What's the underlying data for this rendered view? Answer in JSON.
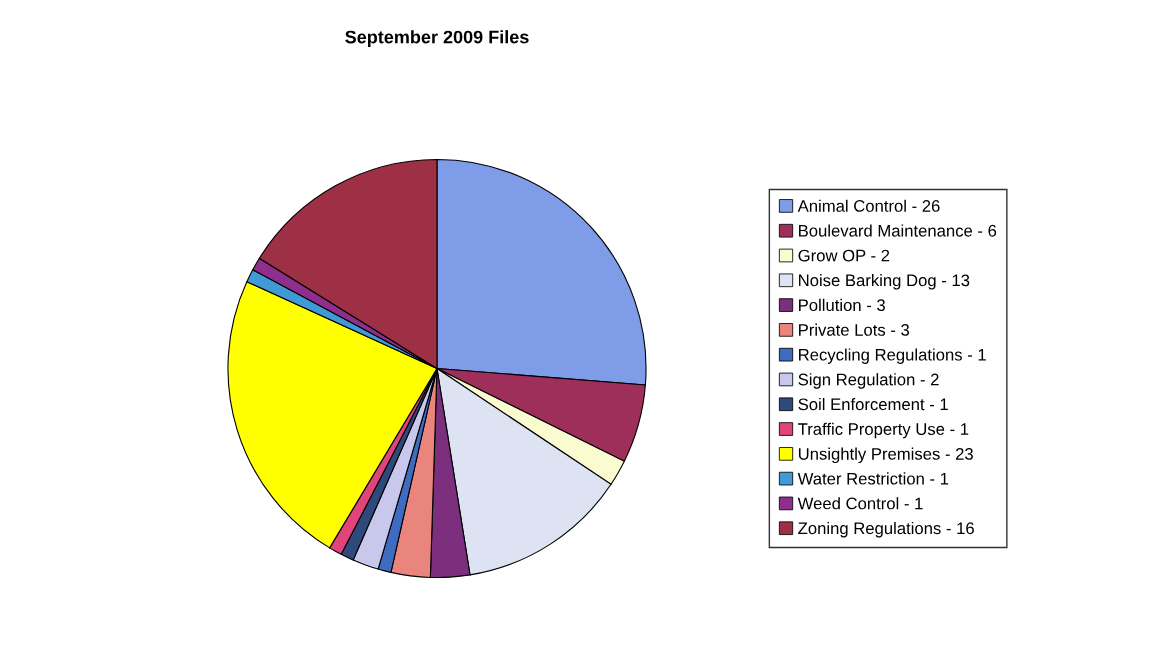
{
  "chart_data": {
    "type": "pie",
    "title": "September 2009 Files",
    "categories": [
      "Animal Control - 26",
      "Boulevard Maintenance - 6",
      "Grow OP - 2",
      "Noise Barking Dog - 13",
      "Pollution - 3",
      "Private Lots - 3",
      "Recycling Regulations - 1",
      "Sign Regulation - 2",
      "Soil Enforcement - 1",
      "Traffic Property Use - 1",
      "Unsightly Premises - 23",
      "Water Restriction - 1",
      "Weed Control - 1",
      "Zoning Regulations - 16"
    ],
    "values": [
      26,
      6,
      2,
      13,
      3,
      3,
      1,
      2,
      1,
      1,
      23,
      1,
      1,
      16
    ],
    "colors": [
      "#7f9ce8",
      "#9e2f5a",
      "#fbfbd0",
      "#dde3f3",
      "#7b2f7d",
      "#e9857c",
      "#3f6bc0",
      "#c8c8ec",
      "#2f4a7a",
      "#e0447a",
      "#ffff00",
      "#3f9ad6",
      "#8e2f8e",
      "#9e3046"
    ],
    "legend": "right"
  }
}
